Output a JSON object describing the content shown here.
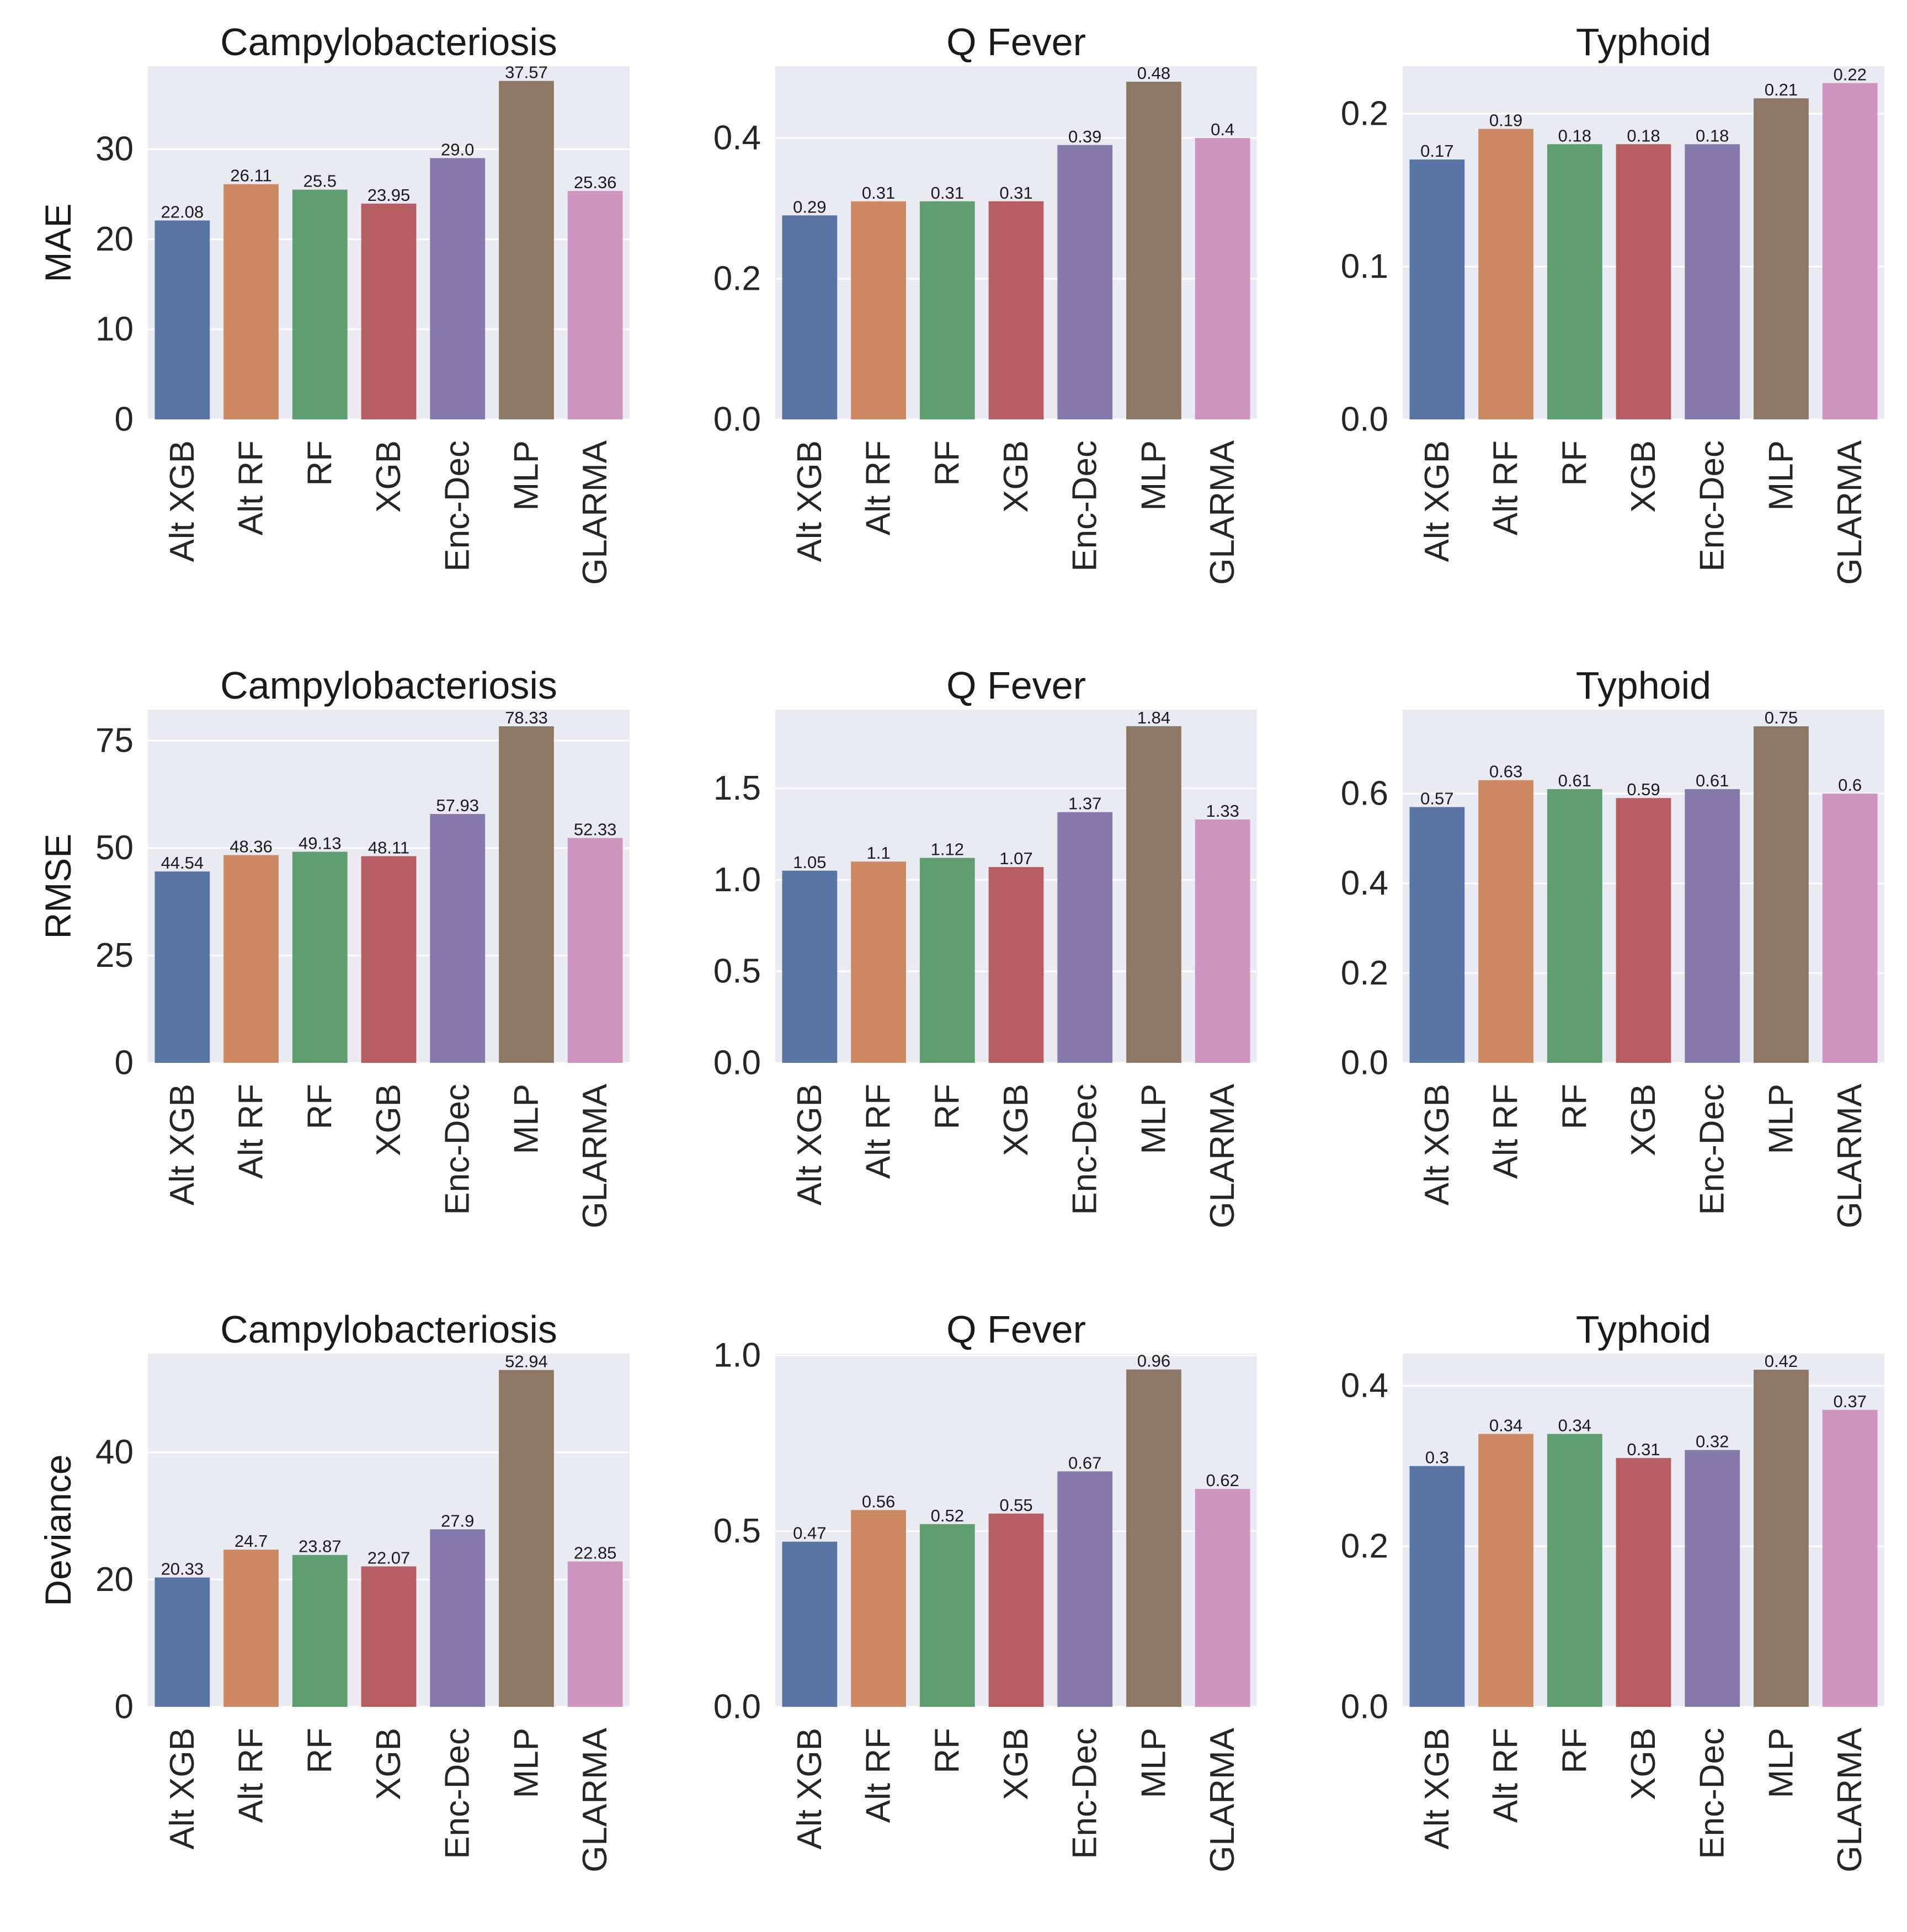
{
  "chart_data": [
    {
      "type": "bar",
      "title": "Campylobacteriosis",
      "ylabel": "MAE",
      "categories": [
        "Alt XGB",
        "Alt RF",
        "RF",
        "XGB",
        "Enc-Dec",
        "MLP",
        "GLARMA"
      ],
      "values": [
        22.08,
        26.11,
        25.5,
        23.95,
        29.0,
        37.57,
        25.36
      ],
      "value_labels": [
        "22.08",
        "26.11",
        "25.5",
        "23.95",
        "29.0",
        "37.57",
        "25.36"
      ],
      "ylim": [
        0,
        39.2
      ],
      "yticks": [
        0,
        10,
        20,
        30
      ],
      "ytick_labels": [
        "0",
        "10",
        "20",
        "30"
      ],
      "grid": true
    },
    {
      "type": "bar",
      "title": "Q Fever",
      "ylabel": "",
      "categories": [
        "Alt XGB",
        "Alt RF",
        "RF",
        "XGB",
        "Enc-Dec",
        "MLP",
        "GLARMA"
      ],
      "values": [
        0.29,
        0.31,
        0.31,
        0.31,
        0.39,
        0.48,
        0.4
      ],
      "value_labels": [
        "0.29",
        "0.31",
        "0.31",
        "0.31",
        "0.39",
        "0.48",
        "0.4"
      ],
      "ylim": [
        0,
        0.502
      ],
      "yticks": [
        0,
        0.2,
        0.4
      ],
      "ytick_labels": [
        "0.0",
        "0.2",
        "0.4"
      ],
      "grid": true
    },
    {
      "type": "bar",
      "title": "Typhoid",
      "ylabel": "",
      "categories": [
        "Alt XGB",
        "Alt RF",
        "RF",
        "XGB",
        "Enc-Dec",
        "MLP",
        "GLARMA"
      ],
      "values": [
        0.17,
        0.19,
        0.18,
        0.18,
        0.18,
        0.21,
        0.22
      ],
      "value_labels": [
        "0.17",
        "0.19",
        "0.18",
        "0.18",
        "0.18",
        "0.21",
        "0.22"
      ],
      "ylim": [
        0,
        0.231
      ],
      "yticks": [
        0,
        0.1,
        0.2
      ],
      "ytick_labels": [
        "0.0",
        "0.1",
        "0.2"
      ],
      "grid": true
    },
    {
      "type": "bar",
      "title": "Campylobacteriosis",
      "ylabel": "RMSE",
      "categories": [
        "Alt XGB",
        "Alt RF",
        "RF",
        "XGB",
        "Enc-Dec",
        "MLP",
        "GLARMA"
      ],
      "values": [
        44.54,
        48.36,
        49.13,
        48.11,
        57.93,
        78.33,
        52.33
      ],
      "value_labels": [
        "44.54",
        "48.36",
        "49.13",
        "48.11",
        "57.93",
        "78.33",
        "52.33"
      ],
      "ylim": [
        0,
        82.2
      ],
      "yticks": [
        0,
        25,
        50,
        75
      ],
      "ytick_labels": [
        "0",
        "25",
        "50",
        "75"
      ],
      "grid": true
    },
    {
      "type": "bar",
      "title": "Q Fever",
      "ylabel": "",
      "categories": [
        "Alt XGB",
        "Alt RF",
        "RF",
        "XGB",
        "Enc-Dec",
        "MLP",
        "GLARMA"
      ],
      "values": [
        1.05,
        1.1,
        1.12,
        1.07,
        1.37,
        1.84,
        1.33
      ],
      "value_labels": [
        "1.05",
        "1.1",
        "1.12",
        "1.07",
        "1.37",
        "1.84",
        "1.33"
      ],
      "ylim": [
        0,
        1.93
      ],
      "yticks": [
        0,
        0.5,
        1.0,
        1.5
      ],
      "ytick_labels": [
        "0.0",
        "0.5",
        "1.0",
        "1.5"
      ],
      "grid": true
    },
    {
      "type": "bar",
      "title": "Typhoid",
      "ylabel": "",
      "categories": [
        "Alt XGB",
        "Alt RF",
        "RF",
        "XGB",
        "Enc-Dec",
        "MLP",
        "GLARMA"
      ],
      "values": [
        0.57,
        0.63,
        0.61,
        0.59,
        0.61,
        0.75,
        0.6
      ],
      "value_labels": [
        "0.57",
        "0.63",
        "0.61",
        "0.59",
        "0.61",
        "0.75",
        "0.6"
      ],
      "ylim": [
        0,
        0.787
      ],
      "yticks": [
        0,
        0.2,
        0.4,
        0.6
      ],
      "ytick_labels": [
        "0.0",
        "0.2",
        "0.4",
        "0.6"
      ],
      "grid": true
    },
    {
      "type": "bar",
      "title": "Campylobacteriosis",
      "ylabel": "Deviance",
      "categories": [
        "Alt XGB",
        "Alt RF",
        "RF",
        "XGB",
        "Enc-Dec",
        "MLP",
        "GLARMA"
      ],
      "values": [
        20.33,
        24.7,
        23.87,
        22.07,
        27.9,
        52.94,
        22.85
      ],
      "value_labels": [
        "20.33",
        "24.7",
        "23.87",
        "22.07",
        "27.9",
        "52.94",
        "22.85"
      ],
      "ylim": [
        0,
        55.5
      ],
      "yticks": [
        0,
        20,
        40
      ],
      "ytick_labels": [
        "0",
        "20",
        "40"
      ],
      "grid": true
    },
    {
      "type": "bar",
      "title": "Q Fever",
      "ylabel": "",
      "categories": [
        "Alt XGB",
        "Alt RF",
        "RF",
        "XGB",
        "Enc-Dec",
        "MLP",
        "GLARMA"
      ],
      "values": [
        0.47,
        0.56,
        0.52,
        0.55,
        0.67,
        0.96,
        0.62
      ],
      "value_labels": [
        "0.47",
        "0.56",
        "0.52",
        "0.55",
        "0.67",
        "0.96",
        "0.62"
      ],
      "ylim": [
        0,
        1.005
      ],
      "yticks": [
        0,
        0.5,
        1.0
      ],
      "ytick_labels": [
        "0.0",
        "0.5",
        "1.0"
      ],
      "grid": true
    },
    {
      "type": "bar",
      "title": "Typhoid",
      "ylabel": "",
      "categories": [
        "Alt XGB",
        "Alt RF",
        "RF",
        "XGB",
        "Enc-Dec",
        "MLP",
        "GLARMA"
      ],
      "values": [
        0.3,
        0.34,
        0.34,
        0.31,
        0.32,
        0.42,
        0.37
      ],
      "value_labels": [
        "0.3",
        "0.34",
        "0.34",
        "0.31",
        "0.32",
        "0.42",
        "0.37"
      ],
      "ylim": [
        0,
        0.44
      ],
      "yticks": [
        0,
        0.2,
        0.4
      ],
      "ytick_labels": [
        "0.0",
        "0.2",
        "0.4"
      ],
      "grid": true
    }
  ],
  "colors": [
    "#5875a4",
    "#cc8963",
    "#5f9e6e",
    "#b55d60",
    "#857aab",
    "#8d7866",
    "#d095bf"
  ]
}
